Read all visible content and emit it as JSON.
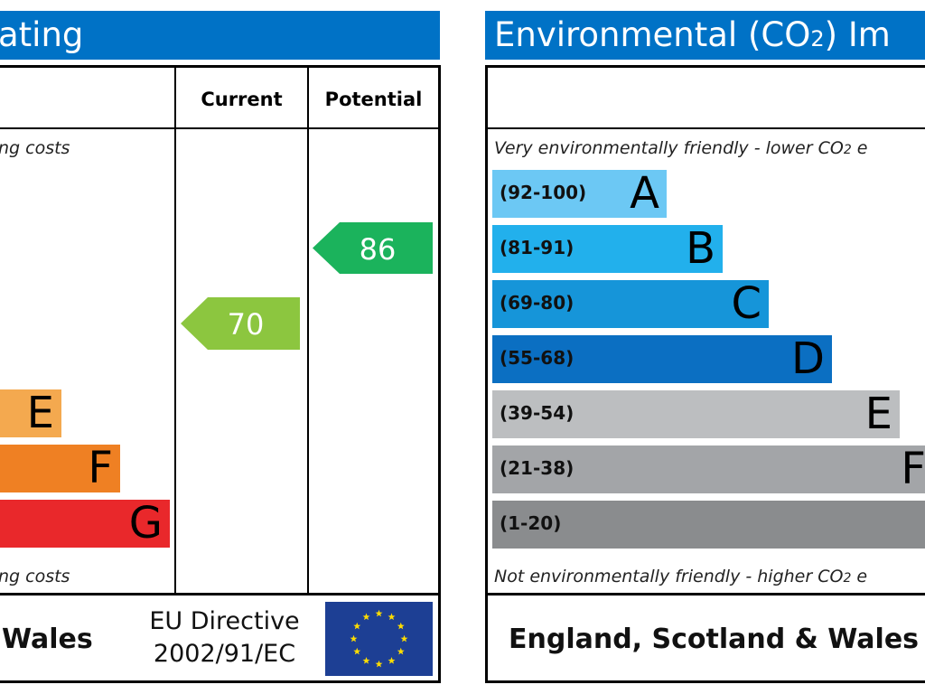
{
  "energy": {
    "title": "ating",
    "col_current": "Current",
    "col_potential": "Potential",
    "top_note": "ng costs",
    "bottom_note": "ng costs",
    "region": "Wales",
    "directive_line1": "EU Directive",
    "directive_line2": "2002/91/EC",
    "eu_flag": "eu-flag-icon"
  },
  "environmental": {
    "title": "Environmental (CO",
    "title_sub": "2",
    "title_tail": ") Im",
    "top_note": "Very environmentally friendly - lower CO",
    "top_note_sub": "2",
    "top_note_tail": " e",
    "bottom_note": "Not environmentally friendly - higher CO",
    "bottom_note_sub": "2",
    "bottom_note_tail": " e",
    "region": "England, Scotland & Wales"
  },
  "chart_data": [
    {
      "type": "bar",
      "title": "",
      "categories": [
        "E",
        "F",
        "G"
      ],
      "colors": [
        "#f4a94f",
        "#ef8023",
        "#e9282b"
      ],
      "current": {
        "value": 70,
        "color": "#8cc63f"
      },
      "potential": {
        "value": 86,
        "color": "#1bb35c"
      }
    },
    {
      "type": "bar",
      "title": "",
      "bands": [
        {
          "range": "(92-100)",
          "letter": "A",
          "color": "#6cc8f4"
        },
        {
          "range": "(81-91)",
          "letter": "B",
          "color": "#22b0ec"
        },
        {
          "range": "(69-80)",
          "letter": "C",
          "color": "#1695d9"
        },
        {
          "range": "(55-68)",
          "letter": "D",
          "color": "#0b6fc2"
        },
        {
          "range": "(39-54)",
          "letter": "E",
          "color": "#bcbec0"
        },
        {
          "range": "(21-38)",
          "letter": "F",
          "color": "#a3a5a8"
        },
        {
          "range": "(1-20)",
          "letter": "",
          "color": "#8a8c8e"
        }
      ]
    }
  ]
}
